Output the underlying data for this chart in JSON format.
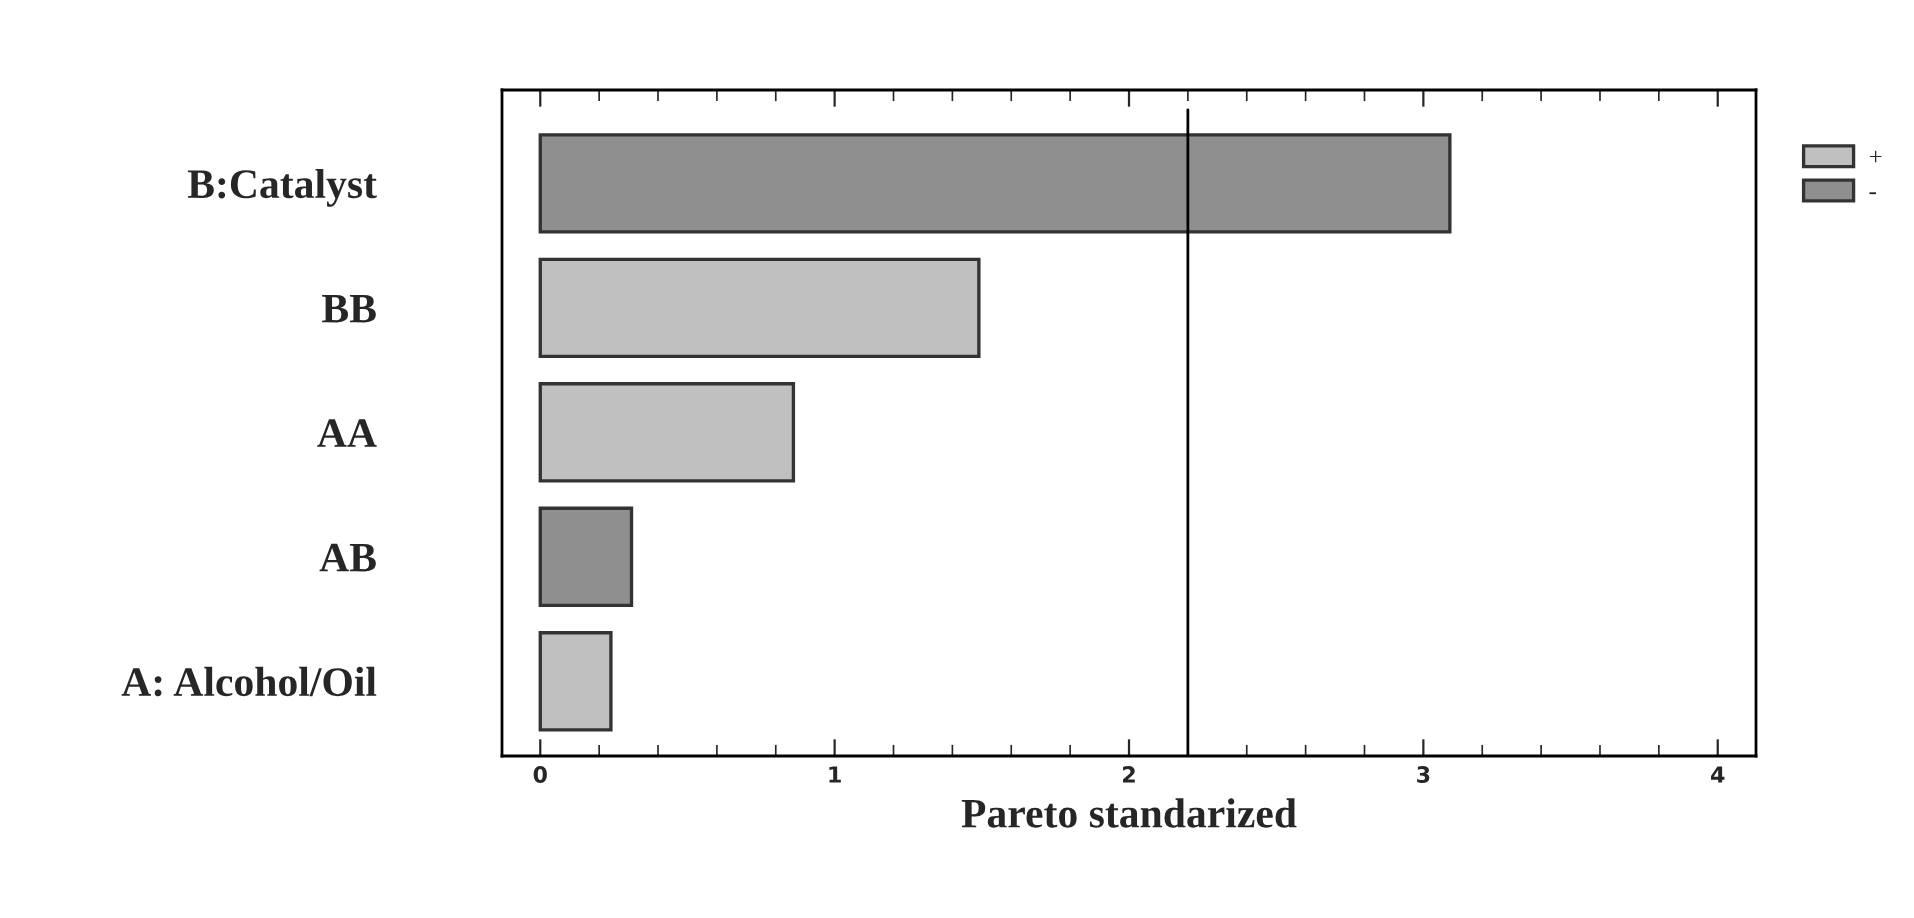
{
  "chart_data": {
    "type": "bar",
    "orientation": "horizontal",
    "xlabel": "Pareto standarized",
    "categories": [
      "B:Catalyst",
      "BB",
      "AA",
      "AB",
      "A: Alcohol/Oil"
    ],
    "series": [
      {
        "name": "+",
        "color": "#c0c0c0",
        "values": [
          null,
          1.49,
          0.86,
          null,
          0.24
        ]
      },
      {
        "name": "-",
        "color": "#8f8f8f",
        "values": [
          3.09,
          null,
          null,
          0.31,
          null
        ]
      }
    ],
    "xlim": [
      -0.13,
      4.13
    ],
    "xticks": [
      0,
      1,
      2,
      3,
      4
    ],
    "ref_lines": [
      {
        "axis": "x",
        "value": 2.2,
        "color": "#000000"
      }
    ],
    "grid": false,
    "legend": "top right"
  }
}
